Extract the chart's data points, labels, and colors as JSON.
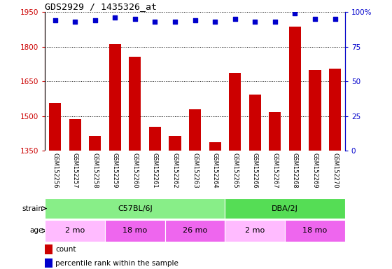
{
  "title": "GDS2929 / 1435326_at",
  "samples": [
    "GSM152256",
    "GSM152257",
    "GSM152258",
    "GSM152259",
    "GSM152260",
    "GSM152261",
    "GSM152262",
    "GSM152263",
    "GSM152264",
    "GSM152265",
    "GSM152266",
    "GSM152267",
    "GSM152268",
    "GSM152269",
    "GSM152270"
  ],
  "counts": [
    1557,
    1487,
    1413,
    1810,
    1757,
    1453,
    1413,
    1528,
    1388,
    1688,
    1594,
    1518,
    1888,
    1698,
    1706
  ],
  "percentile_ranks": [
    94,
    93,
    94,
    96,
    95,
    93,
    93,
    94,
    93,
    95,
    93,
    93,
    99,
    95,
    95
  ],
  "ylim": [
    1350,
    1950
  ],
  "yticks": [
    1350,
    1500,
    1650,
    1800,
    1950
  ],
  "right_yticks": [
    0,
    25,
    50,
    75,
    100
  ],
  "bar_color": "#cc0000",
  "dot_color": "#0000cc",
  "strain_groups": [
    {
      "label": "C57BL/6J",
      "start": 0,
      "end": 8,
      "color": "#88ee88"
    },
    {
      "label": "DBA/2J",
      "start": 9,
      "end": 14,
      "color": "#55dd55"
    }
  ],
  "age_groups": [
    {
      "label": "2 mo",
      "start": 0,
      "end": 2,
      "color": "#ffbbff"
    },
    {
      "label": "18 mo",
      "start": 3,
      "end": 5,
      "color": "#ee66ee"
    },
    {
      "label": "26 mo",
      "start": 6,
      "end": 8,
      "color": "#ee66ee"
    },
    {
      "label": "2 mo",
      "start": 9,
      "end": 11,
      "color": "#ffbbff"
    },
    {
      "label": "18 mo",
      "start": 12,
      "end": 14,
      "color": "#ee66ee"
    }
  ],
  "strain_label": "strain",
  "age_label": "age",
  "legend_count_label": "count",
  "legend_pct_label": "percentile rank within the sample",
  "tick_area_bg": "#cccccc",
  "grid_color": "#000000",
  "age_colors": [
    "#ffbbff",
    "#ee66ee",
    "#ee66ee",
    "#ffbbff",
    "#ee66ee"
  ]
}
